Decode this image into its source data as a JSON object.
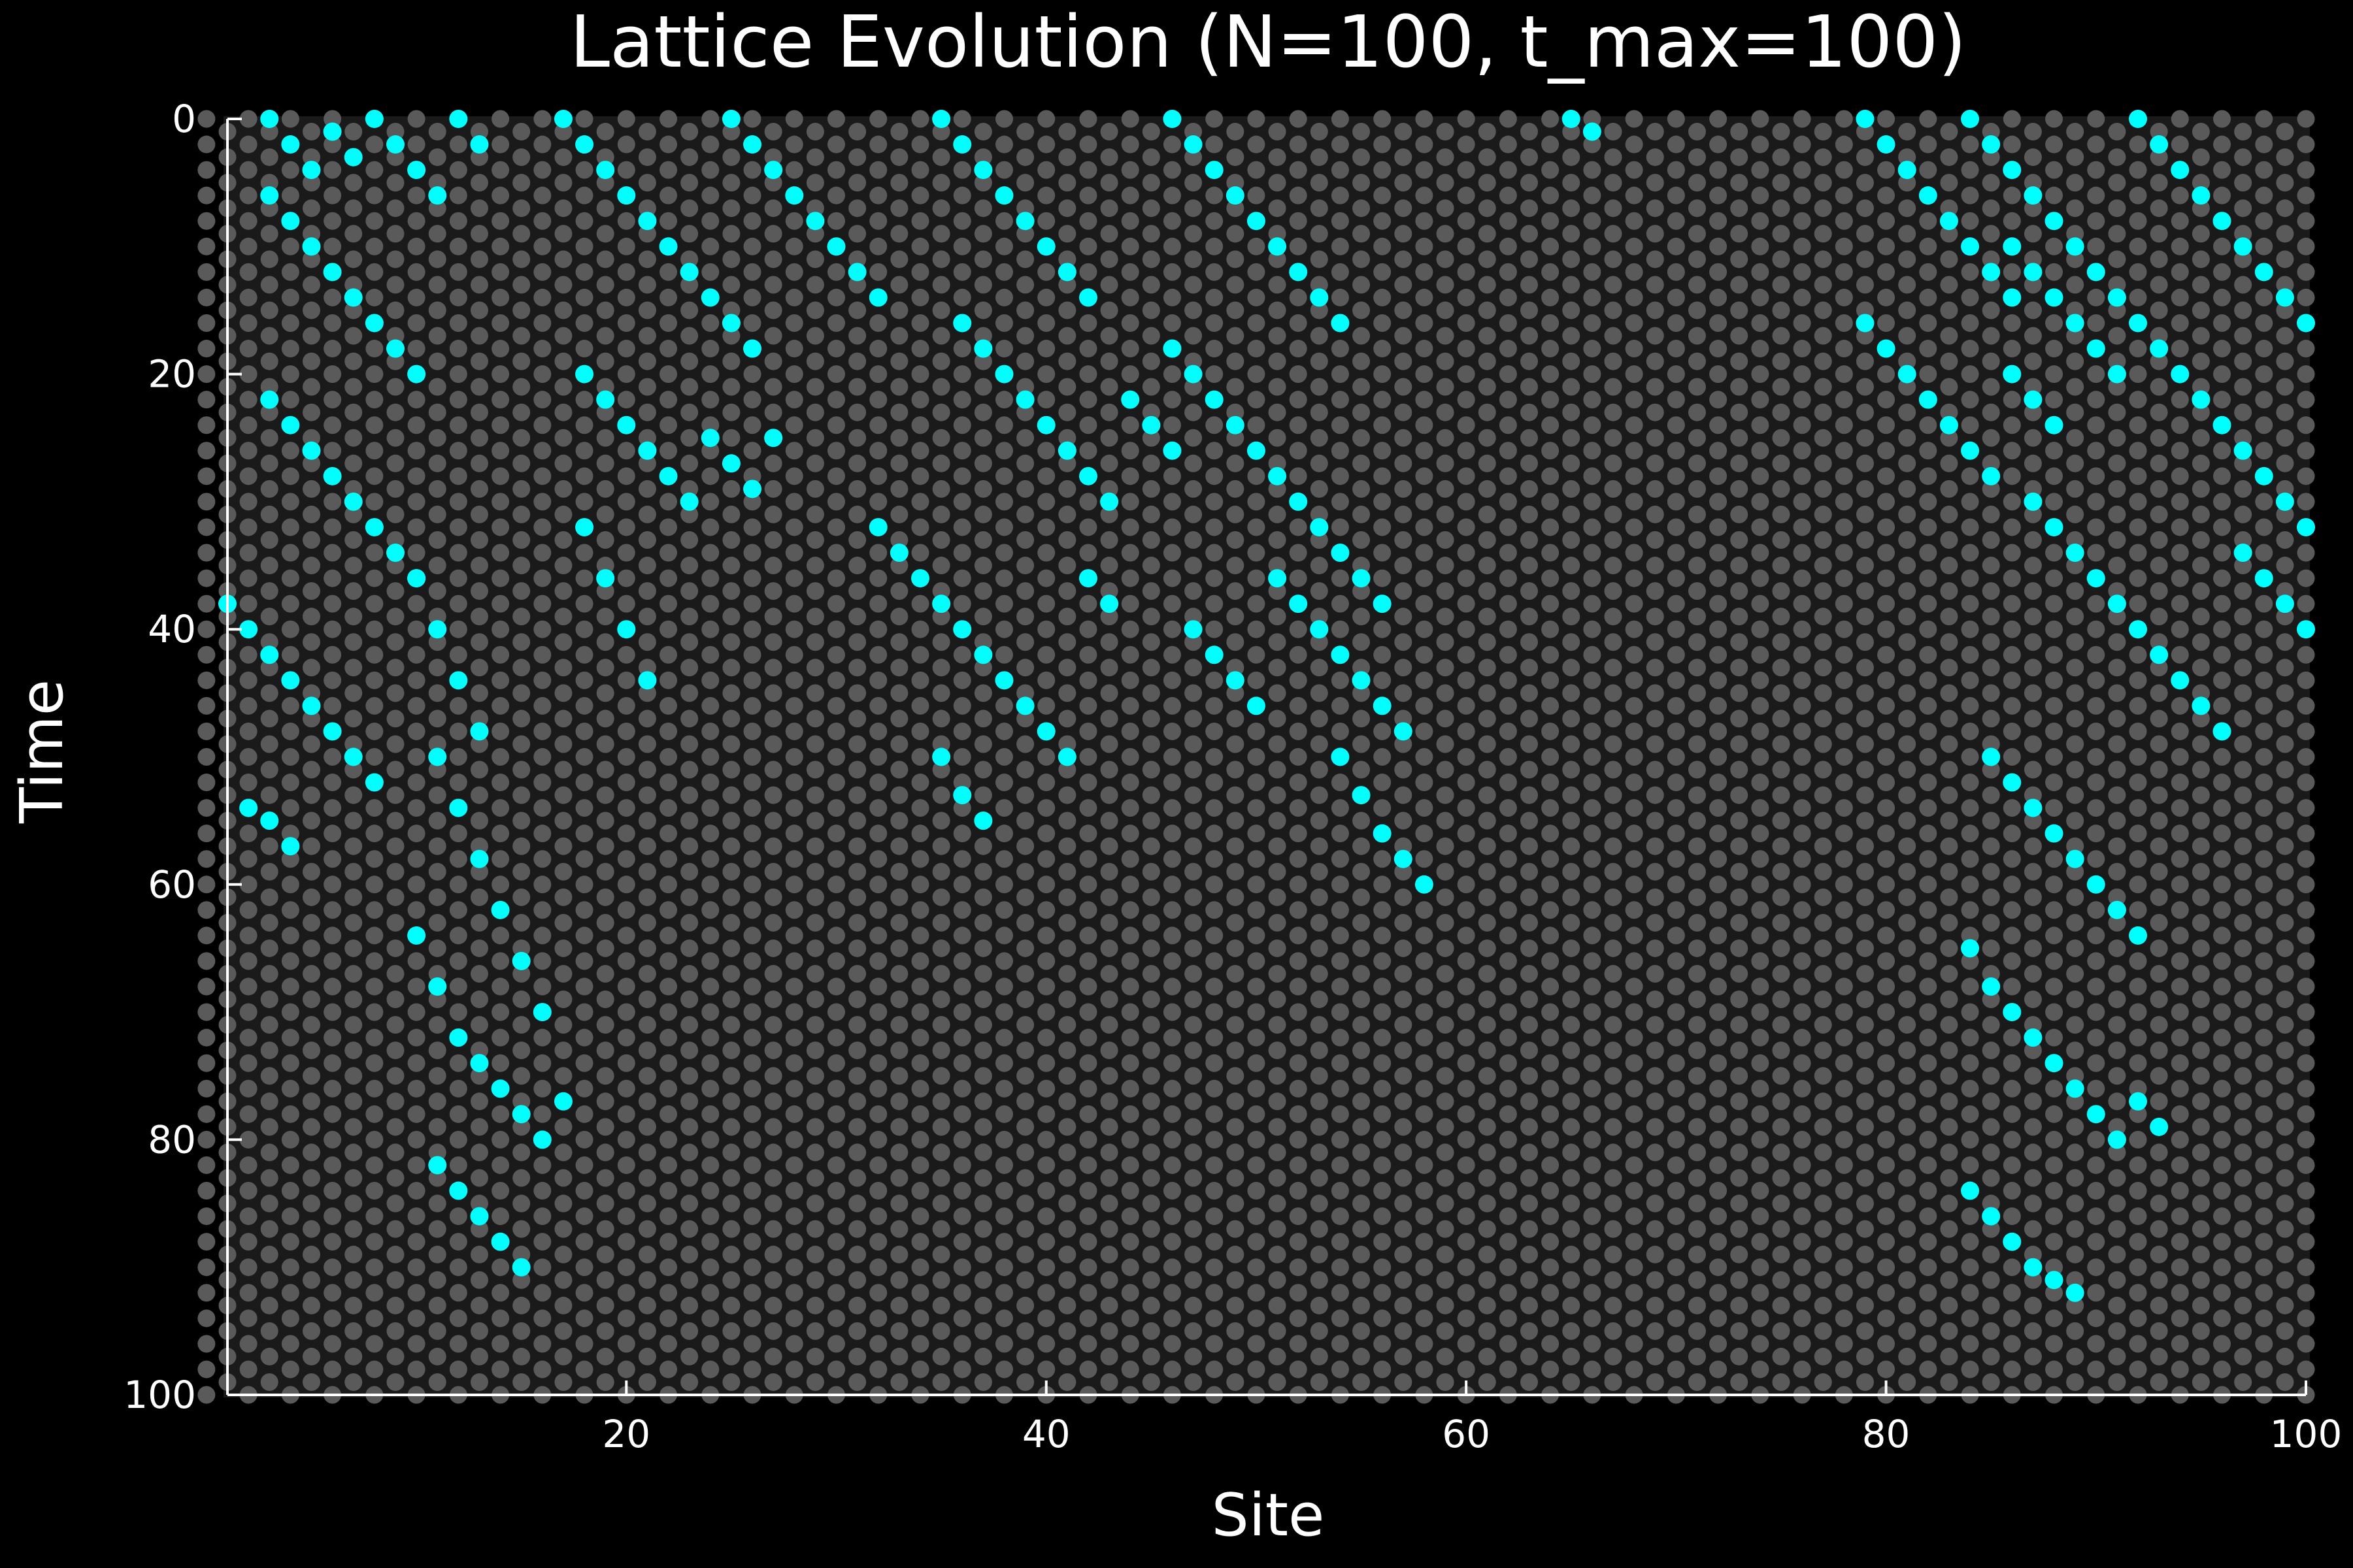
{
  "chart_data": {
    "type": "scatter",
    "title": "Lattice Evolution (N=100, t_max=100)",
    "xlabel": "Site",
    "ylabel": "Time",
    "xlim": [
      1,
      100
    ],
    "ylim": [
      0,
      100
    ],
    "y_inverted": true,
    "grid": false,
    "legend": "none",
    "x_ticks": [
      20,
      40,
      60,
      80,
      100
    ],
    "y_ticks": [
      0,
      20,
      40,
      60,
      80,
      100
    ],
    "colors": {
      "background": "#000000",
      "inactive_site": "#5a5a5a",
      "active_site": "#00ffff",
      "axis": "#ffffff",
      "text": "#ffffff"
    },
    "active_clusters": [
      {
        "x": [
          3,
          4,
          5,
          6,
          7
        ],
        "y": [
          0,
          2,
          4,
          1,
          3
        ]
      },
      {
        "x": [
          3,
          4,
          5,
          6,
          7,
          8,
          9,
          10
        ],
        "y": [
          6,
          8,
          10,
          12,
          14,
          16,
          18,
          20
        ]
      },
      {
        "x": [
          3,
          4,
          5,
          6,
          7,
          8,
          9,
          10
        ],
        "y": [
          22,
          24,
          26,
          28,
          30,
          32,
          34,
          36
        ]
      },
      {
        "x": [
          1,
          2,
          3,
          4,
          5,
          6,
          7,
          8
        ],
        "y": [
          38,
          40,
          42,
          44,
          46,
          48,
          50,
          52
        ]
      },
      {
        "x": [
          2,
          3,
          4
        ],
        "y": [
          54,
          55,
          57
        ]
      },
      {
        "x": [
          8,
          9,
          10,
          11
        ],
        "y": [
          0,
          2,
          4,
          6
        ]
      },
      {
        "x": [
          10,
          11,
          12,
          13
        ],
        "y": [
          36,
          40,
          44,
          48
        ]
      },
      {
        "x": [
          11,
          12,
          13,
          14,
          15,
          16
        ],
        "y": [
          50,
          54,
          58,
          62,
          66,
          70
        ]
      },
      {
        "x": [
          10,
          11,
          12,
          13,
          14,
          15,
          16,
          17
        ],
        "y": [
          64,
          68,
          72,
          74,
          76,
          78,
          80,
          77
        ]
      },
      {
        "x": [
          11,
          12,
          13,
          14,
          15
        ],
        "y": [
          82,
          84,
          86,
          88,
          90
        ]
      },
      {
        "x": [
          12,
          13
        ],
        "y": [
          0,
          2
        ]
      },
      {
        "x": [
          17,
          18,
          19,
          20,
          21,
          22,
          23,
          24,
          25,
          26
        ],
        "y": [
          0,
          2,
          4,
          6,
          8,
          10,
          12,
          14,
          16,
          18
        ]
      },
      {
        "x": [
          18,
          19,
          20,
          21,
          22,
          23,
          24,
          25,
          26,
          27
        ],
        "y": [
          20,
          22,
          24,
          26,
          28,
          30,
          25,
          27,
          29,
          25
        ]
      },
      {
        "x": [
          18,
          19,
          20,
          21
        ],
        "y": [
          32,
          36,
          40,
          44
        ]
      },
      {
        "x": [
          25,
          26,
          27,
          28,
          29,
          30,
          31,
          32
        ],
        "y": [
          0,
          2,
          4,
          6,
          8,
          10,
          12,
          14
        ]
      },
      {
        "x": [
          35,
          36,
          37,
          38,
          39,
          40,
          41,
          42
        ],
        "y": [
          0,
          2,
          4,
          6,
          8,
          10,
          12,
          14
        ]
      },
      {
        "x": [
          36,
          37,
          38,
          39,
          40,
          41,
          42,
          43,
          44,
          45,
          46
        ],
        "y": [
          16,
          18,
          20,
          22,
          24,
          26,
          28,
          30,
          22,
          24,
          26
        ]
      },
      {
        "x": [
          32,
          33,
          34,
          35,
          36,
          37,
          38,
          39,
          40,
          41,
          42,
          43
        ],
        "y": [
          32,
          34,
          36,
          38,
          40,
          42,
          44,
          46,
          48,
          50,
          36,
          38
        ]
      },
      {
        "x": [
          35,
          36,
          37
        ],
        "y": [
          50,
          53,
          55
        ]
      },
      {
        "x": [
          46,
          47,
          48,
          49,
          50,
          51,
          52,
          53,
          54
        ],
        "y": [
          0,
          2,
          4,
          6,
          8,
          10,
          12,
          14,
          16
        ]
      },
      {
        "x": [
          46,
          47,
          48,
          49,
          50,
          51,
          52,
          53,
          54,
          55,
          56
        ],
        "y": [
          18,
          20,
          22,
          24,
          26,
          28,
          30,
          32,
          34,
          36,
          38
        ]
      },
      {
        "x": [
          47,
          48,
          49,
          50,
          51,
          52,
          53,
          54,
          55,
          56,
          57
        ],
        "y": [
          40,
          42,
          44,
          46,
          36,
          38,
          40,
          42,
          44,
          46,
          48
        ]
      },
      {
        "x": [
          54,
          55,
          56,
          57,
          58
        ],
        "y": [
          50,
          53,
          56,
          58,
          60
        ]
      },
      {
        "x": [
          65,
          66
        ],
        "y": [
          0,
          1
        ]
      },
      {
        "x": [
          79,
          80,
          81,
          82,
          83,
          84,
          85,
          86
        ],
        "y": [
          0,
          2,
          4,
          6,
          8,
          10,
          12,
          14
        ]
      },
      {
        "x": [
          79,
          80,
          81,
          82,
          83,
          84,
          85,
          86,
          87,
          88
        ],
        "y": [
          16,
          18,
          20,
          22,
          24,
          26,
          28,
          20,
          22,
          24
        ]
      },
      {
        "x": [
          84,
          85,
          86,
          87,
          88,
          89,
          90,
          91,
          92,
          93,
          94,
          95,
          96,
          97,
          98,
          99,
          100
        ],
        "y": [
          0,
          2,
          4,
          6,
          8,
          10,
          12,
          14,
          16,
          18,
          20,
          22,
          24,
          26,
          28,
          30,
          32
        ]
      },
      {
        "x": [
          86,
          87,
          88,
          89,
          90,
          91,
          92,
          93,
          94,
          95,
          96,
          97,
          98,
          99,
          100
        ],
        "y": [
          10,
          12,
          14,
          16,
          18,
          20,
          0,
          2,
          4,
          6,
          8,
          10,
          12,
          14,
          16
        ]
      },
      {
        "x": [
          87,
          88,
          89,
          90,
          91,
          92,
          93,
          94,
          95,
          96
        ],
        "y": [
          30,
          32,
          34,
          36,
          38,
          40,
          42,
          44,
          46,
          48
        ]
      },
      {
        "x": [
          97,
          98,
          99,
          100
        ],
        "y": [
          34,
          36,
          38,
          40
        ]
      },
      {
        "x": [
          85,
          86,
          87,
          88,
          89,
          90,
          91,
          92
        ],
        "y": [
          50,
          52,
          54,
          56,
          58,
          60,
          62,
          64
        ]
      },
      {
        "x": [
          84,
          85,
          86,
          87,
          88,
          89,
          90,
          91,
          92,
          93
        ],
        "y": [
          65,
          68,
          70,
          72,
          74,
          76,
          78,
          80,
          77,
          79
        ]
      },
      {
        "x": [
          84,
          85,
          86,
          87,
          88,
          89
        ],
        "y": [
          84,
          86,
          88,
          90,
          91,
          92
        ]
      }
    ]
  }
}
